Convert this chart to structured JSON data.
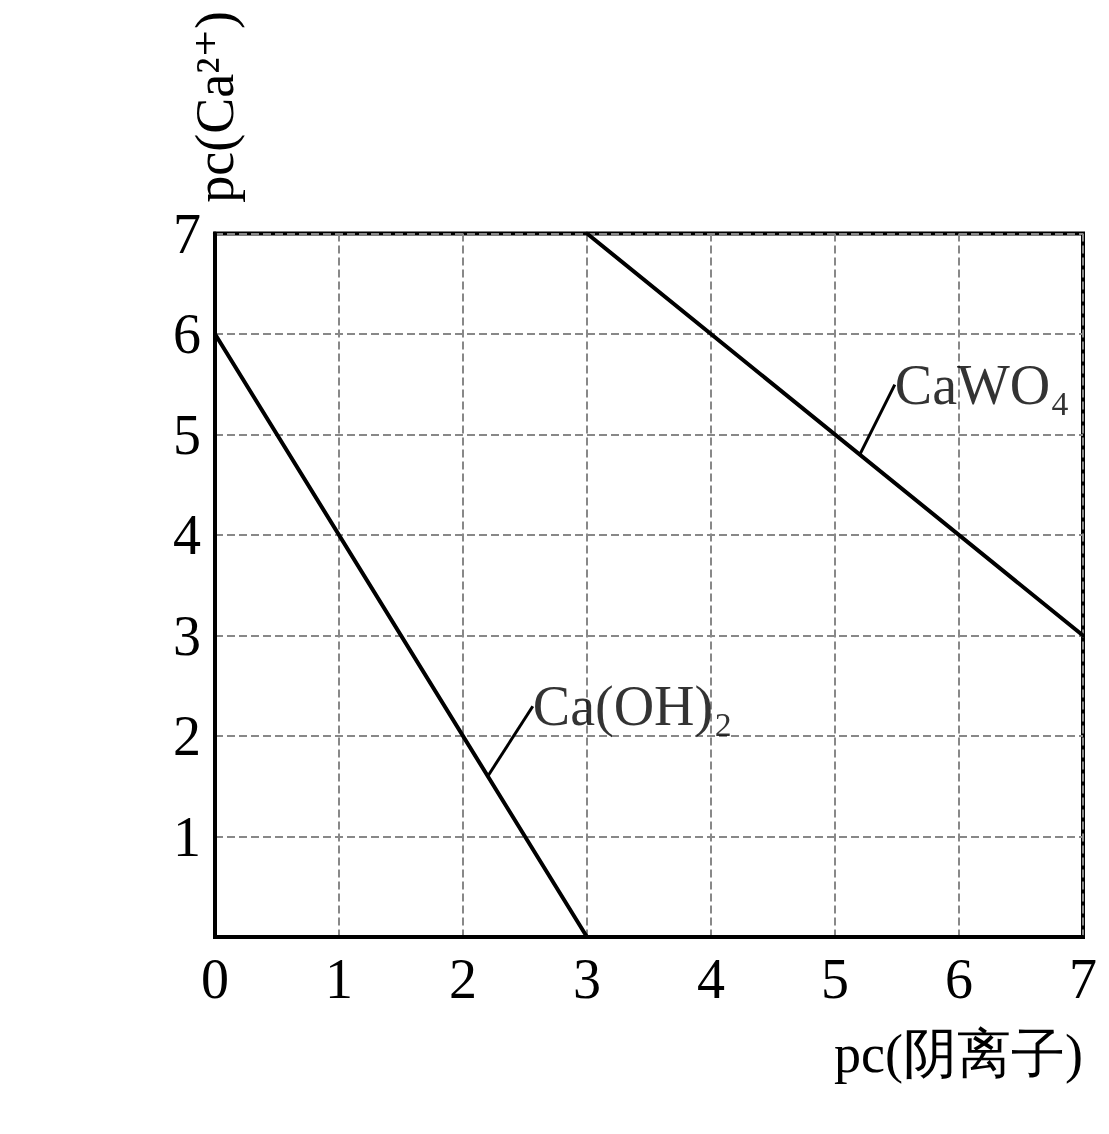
{
  "chart_data": {
    "type": "line",
    "xlabel": "pc(阴离子)",
    "ylabel": "pc(Ca²⁺)",
    "xlim": [
      0,
      7
    ],
    "ylim": [
      0,
      7
    ],
    "xticks": [
      0,
      1,
      2,
      3,
      4,
      5,
      6,
      7
    ],
    "yticks": [
      {
        "value": 0,
        "label": null
      },
      1,
      2,
      3,
      4,
      5,
      6,
      7
    ],
    "grid": true,
    "marker": "none",
    "line_style": "solid",
    "series": [
      {
        "color": "#000000",
        "x": [
          0,
          3
        ],
        "values": [
          6,
          0
        ]
      },
      {
        "color": "#000000",
        "x": [
          3,
          7
        ],
        "values": [
          7,
          3
        ]
      }
    ],
    "annotations": [
      {
        "text": "Ca(OH)₂",
        "x": 2.2,
        "y": 1.6
      },
      {
        "text": "CaWO₄",
        "x": 5.2,
        "y": 4.8
      }
    ]
  }
}
